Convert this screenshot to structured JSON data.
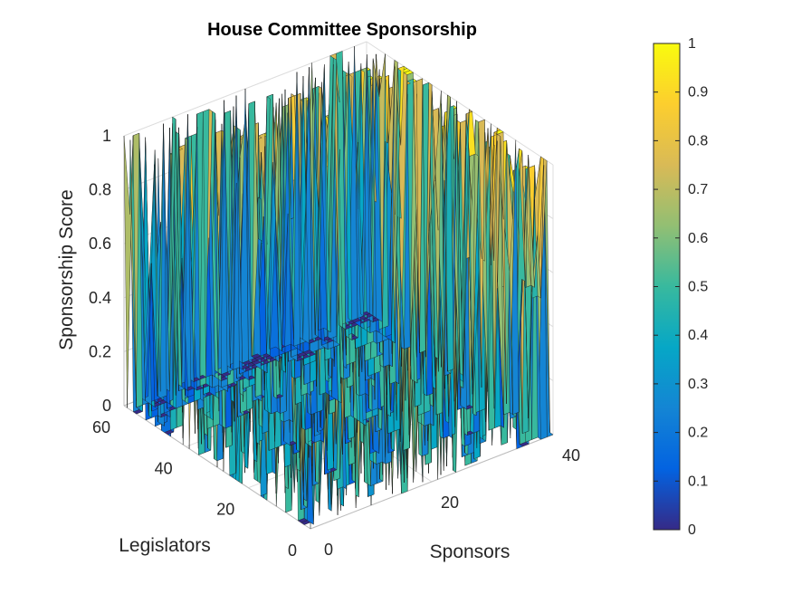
{
  "chart_data": {
    "type": "surface",
    "title": "House Committee Sponsorship",
    "xlabel": "Sponsors",
    "ylabel": "Legislators",
    "zlabel": "Sponsorship Score",
    "xlim": [
      0,
      40
    ],
    "ylim": [
      0,
      60
    ],
    "zlim": [
      0,
      1
    ],
    "x_ticks": [
      "0",
      "20",
      "40"
    ],
    "y_ticks": [
      "0",
      "20",
      "40",
      "60"
    ],
    "z_ticks": [
      "0",
      "0.2",
      "0.4",
      "0.6",
      "0.8",
      "1"
    ],
    "grid": true,
    "colormap": "parula",
    "colorbar": {
      "position": "right",
      "min": 0,
      "max": 1,
      "ticks": [
        "0",
        "0.1",
        "0.2",
        "0.3",
        "0.4",
        "0.5",
        "0.6",
        "0.7",
        "0.8",
        "0.9",
        "1"
      ]
    },
    "parula_stops": [
      "#352a87",
      "#0363e1",
      "#1485d4",
      "#06a7c6",
      "#38b99e",
      "#92bf73",
      "#d9ba56",
      "#fcce2e",
      "#f9fb0e"
    ],
    "z_value_levels": [
      0,
      0.5,
      0.7,
      0.85,
      1
    ]
  }
}
